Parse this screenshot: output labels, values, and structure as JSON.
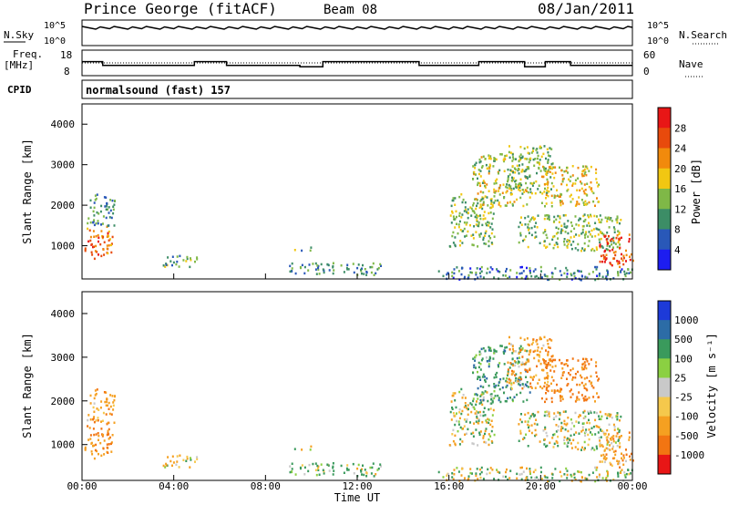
{
  "header": {
    "title": "Prince George (fitACF)",
    "beam": "Beam 08",
    "date": "08/Jan/2011"
  },
  "noise_panel": {
    "left_label": "N.Sky",
    "right_label": "N.Search",
    "left_ticks": [
      "10^5",
      "10^0"
    ],
    "right_ticks": [
      "10^5",
      "10^0"
    ]
  },
  "freq_panel": {
    "left_label_line1": "Freq.",
    "left_label_line2": "[MHz]",
    "right_label": "Nave",
    "left_ticks": [
      "18",
      "8"
    ],
    "right_ticks": [
      "60",
      "0"
    ],
    "freq_steps": [
      {
        "t": 0.0,
        "f": 13.5
      },
      {
        "t": 0.9,
        "f": 12.0
      },
      {
        "t": 4.9,
        "f": 13.5
      },
      {
        "t": 6.3,
        "f": 12.0
      },
      {
        "t": 9.5,
        "f": 11.5
      },
      {
        "t": 10.5,
        "f": 13.5
      },
      {
        "t": 14.7,
        "f": 12.0
      },
      {
        "t": 17.3,
        "f": 13.5
      },
      {
        "t": 19.3,
        "f": 11.5
      },
      {
        "t": 20.2,
        "f": 13.5
      },
      {
        "t": 21.3,
        "f": 12.0
      },
      {
        "t": 23.0,
        "f": 12.0
      }
    ]
  },
  "cpid": {
    "label": "CPID",
    "program": "normalsound (fast)  157"
  },
  "power_panel": {
    "ylabel": "Slant Range [km]",
    "yticks": [
      "1000",
      "2000",
      "3000",
      "4000"
    ],
    "colorbar_label": "Power [dB]",
    "colorbar_ticks": [
      "4",
      "8",
      "12",
      "16",
      "20",
      "24",
      "28"
    ],
    "colors": [
      "#1d1df0",
      "#2958b8",
      "#3c8d66",
      "#7fb847",
      "#f1c712",
      "#f18a0c",
      "#e84a0c",
      "#e81616"
    ]
  },
  "velocity_panel": {
    "ylabel": "Slant Range [km]",
    "yticks": [
      "1000",
      "2000",
      "3000",
      "4000"
    ],
    "colorbar_label": "Velocity [m s⁻¹]",
    "colorbar_ticks": [
      "1000",
      "500",
      "100",
      "25",
      "-25",
      "-100",
      "-500",
      "-1000"
    ],
    "colors": [
      "#1d3ad8",
      "#2c6ca6",
      "#3a9a5c",
      "#8bd042",
      "#c9c9c9",
      "#f5c84c",
      "#f5a021",
      "#f27512",
      "#e81616"
    ]
  },
  "x_axis": {
    "title": "Time UT",
    "ticks": [
      "00:00",
      "04:00",
      "08:00",
      "12:00",
      "16:00",
      "20:00",
      "00:00"
    ]
  },
  "chart_data": {
    "type": "heatmap",
    "x_range_hours": [
      0,
      24
    ],
    "y_range_km": [
      180,
      4500
    ],
    "regions": [
      {
        "t0": 0.1,
        "t1": 1.3,
        "r0": 700,
        "r1": 1500,
        "power": 24,
        "vel": -300
      },
      {
        "t0": 0.2,
        "t1": 1.4,
        "r0": 1500,
        "r1": 2300,
        "power": 10,
        "vel": -200
      },
      {
        "t0": 3.5,
        "t1": 5.0,
        "r0": 500,
        "r1": 800,
        "power": 12,
        "vel": -100
      },
      {
        "t0": 9.2,
        "t1": 10.0,
        "r0": 900,
        "r1": 1000,
        "power": 12,
        "vel": 25
      },
      {
        "t0": 9.0,
        "t1": 13.0,
        "r0": 300,
        "r1": 600,
        "power": 10,
        "vel": 100
      },
      {
        "t0": 16.0,
        "t1": 18.0,
        "r0": 1000,
        "r1": 2300,
        "power": 14,
        "vel": 0
      },
      {
        "t0": 17.0,
        "t1": 19.5,
        "r0": 2000,
        "r1": 3300,
        "power": 16,
        "vel": 200
      },
      {
        "t0": 18.5,
        "t1": 20.5,
        "r0": 2300,
        "r1": 3500,
        "power": 14,
        "vel": -200
      },
      {
        "t0": 20.0,
        "t1": 22.5,
        "r0": 2000,
        "r1": 3000,
        "power": 18,
        "vel": -400
      },
      {
        "t0": 19.0,
        "t1": 23.5,
        "r0": 900,
        "r1": 1800,
        "power": 14,
        "vel": 0
      },
      {
        "t0": 22.5,
        "t1": 24.0,
        "r0": 500,
        "r1": 1300,
        "power": 26,
        "vel": -200
      },
      {
        "t0": 15.5,
        "t1": 24.0,
        "r0": 180,
        "r1": 500,
        "power": 8,
        "vel": 0
      }
    ]
  }
}
